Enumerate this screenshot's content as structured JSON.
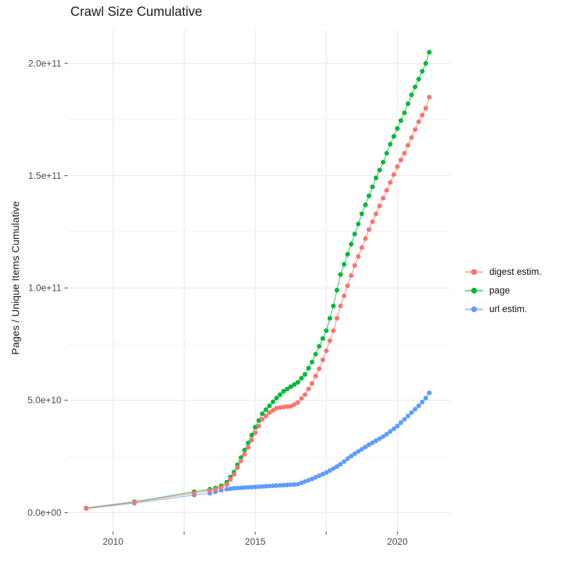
{
  "chart_data": {
    "type": "scatter",
    "title": "Crawl Size Cumulative",
    "xlabel": "",
    "ylabel": "Pages / Unique Items Cumulative",
    "value_unit": "items (x 1e9)",
    "grid": true,
    "legend_position": "right",
    "xlim": [
      2008.4,
      2021.85
    ],
    "ylim_billions": [
      -8.5,
      215
    ],
    "x_gridlines_years": [
      2010,
      2012.5,
      2015,
      2017.5,
      2020
    ],
    "x_tick_labels": [
      {
        "year": 2010,
        "label": "2010"
      },
      {
        "year": 2015,
        "label": "2015"
      },
      {
        "year": 2020,
        "label": "2020"
      }
    ],
    "y_major_ticks": [
      {
        "value_billions": 0,
        "label": "0.0e+00"
      },
      {
        "value_billions": 50,
        "label": "5.0e+10"
      },
      {
        "value_billions": 100,
        "label": "1.0e+11"
      },
      {
        "value_billions": 150,
        "label": "1.5e+11"
      },
      {
        "value_billions": 200,
        "label": "2.0e+11"
      }
    ],
    "y_minor_gridlines_billions": [
      25,
      75,
      125,
      175
    ],
    "series": [
      {
        "name": "digest estim.",
        "color": "#F8766D",
        "points_year_billions": [
          [
            2009.05,
            1.9
          ],
          [
            2010.75,
            4.6
          ],
          [
            2012.85,
            8.7
          ],
          [
            2013.4,
            9.8
          ],
          [
            2013.6,
            10.3
          ],
          [
            2013.8,
            11.2
          ],
          [
            2014,
            12.5
          ],
          [
            2014.125,
            14.8
          ],
          [
            2014.25,
            17
          ],
          [
            2014.375,
            20
          ],
          [
            2014.5,
            23
          ],
          [
            2014.625,
            26
          ],
          [
            2014.75,
            29
          ],
          [
            2014.875,
            32.3
          ],
          [
            2015,
            35.5
          ],
          [
            2015.125,
            38.5
          ],
          [
            2015.25,
            41.5
          ],
          [
            2015.375,
            43
          ],
          [
            2015.5,
            44.5
          ],
          [
            2015.625,
            45.5
          ],
          [
            2015.75,
            46.5
          ],
          [
            2015.875,
            46.8
          ],
          [
            2016,
            47
          ],
          [
            2016.125,
            47.2
          ],
          [
            2016.25,
            47.3
          ],
          [
            2016.375,
            48.1
          ],
          [
            2016.5,
            49
          ],
          [
            2016.625,
            50.8
          ],
          [
            2016.75,
            52.5
          ],
          [
            2016.875,
            55
          ],
          [
            2017,
            57.5
          ],
          [
            2017.125,
            60.8
          ],
          [
            2017.25,
            64
          ],
          [
            2017.375,
            68
          ],
          [
            2017.5,
            72
          ],
          [
            2017.625,
            76.5
          ],
          [
            2017.75,
            81
          ],
          [
            2017.875,
            86.5
          ],
          [
            2018,
            92
          ],
          [
            2018.125,
            96.5
          ],
          [
            2018.25,
            101
          ],
          [
            2018.375,
            105.5
          ],
          [
            2018.5,
            110
          ],
          [
            2018.625,
            114
          ],
          [
            2018.75,
            118
          ],
          [
            2018.875,
            122
          ],
          [
            2019,
            126
          ],
          [
            2019.125,
            129.5
          ],
          [
            2019.25,
            133
          ],
          [
            2019.375,
            136.5
          ],
          [
            2019.5,
            140
          ],
          [
            2019.625,
            143.5
          ],
          [
            2019.75,
            147
          ],
          [
            2019.875,
            150.5
          ],
          [
            2020,
            154
          ],
          [
            2020.125,
            157
          ],
          [
            2020.25,
            160
          ],
          [
            2020.375,
            163.5
          ],
          [
            2020.5,
            167
          ],
          [
            2020.625,
            170.5
          ],
          [
            2020.75,
            174
          ],
          [
            2020.875,
            177
          ],
          [
            2021,
            180
          ],
          [
            2021.125,
            185
          ]
        ]
      },
      {
        "name": "page",
        "color": "#00BA38",
        "points_year_billions": [
          [
            2009.05,
            2
          ],
          [
            2010.75,
            4.8
          ],
          [
            2012.85,
            9.3
          ],
          [
            2013.4,
            10.4
          ],
          [
            2013.6,
            10.9
          ],
          [
            2013.8,
            11.9
          ],
          [
            2014,
            13.5
          ],
          [
            2014.125,
            15.8
          ],
          [
            2014.25,
            18
          ],
          [
            2014.375,
            21.3
          ],
          [
            2014.5,
            24.5
          ],
          [
            2014.625,
            27.8
          ],
          [
            2014.75,
            31
          ],
          [
            2014.875,
            34.5
          ],
          [
            2015,
            38
          ],
          [
            2015.125,
            41
          ],
          [
            2015.25,
            44
          ],
          [
            2015.375,
            45.8
          ],
          [
            2015.5,
            47.5
          ],
          [
            2015.625,
            49.3
          ],
          [
            2015.75,
            51
          ],
          [
            2015.875,
            52.5
          ],
          [
            2016,
            54
          ],
          [
            2016.125,
            55
          ],
          [
            2016.25,
            56
          ],
          [
            2016.375,
            57
          ],
          [
            2016.5,
            58
          ],
          [
            2016.625,
            59.8
          ],
          [
            2016.75,
            61.5
          ],
          [
            2016.875,
            64.3
          ],
          [
            2017,
            67
          ],
          [
            2017.125,
            70.5
          ],
          [
            2017.25,
            74
          ],
          [
            2017.375,
            77.5
          ],
          [
            2017.5,
            81
          ],
          [
            2017.625,
            86.5
          ],
          [
            2017.75,
            92
          ],
          [
            2017.875,
            99
          ],
          [
            2018,
            106
          ],
          [
            2018.125,
            110.5
          ],
          [
            2018.25,
            115
          ],
          [
            2018.375,
            119.5
          ],
          [
            2018.5,
            124
          ],
          [
            2018.625,
            128.5
          ],
          [
            2018.75,
            133
          ],
          [
            2018.875,
            137
          ],
          [
            2019,
            141
          ],
          [
            2019.125,
            145
          ],
          [
            2019.25,
            149
          ],
          [
            2019.375,
            152.5
          ],
          [
            2019.5,
            156
          ],
          [
            2019.625,
            160
          ],
          [
            2019.75,
            164
          ],
          [
            2019.875,
            167.5
          ],
          [
            2020,
            171
          ],
          [
            2020.125,
            174.5
          ],
          [
            2020.25,
            178
          ],
          [
            2020.375,
            182
          ],
          [
            2020.5,
            186
          ],
          [
            2020.625,
            189.5
          ],
          [
            2020.75,
            193
          ],
          [
            2020.875,
            196.5
          ],
          [
            2021,
            200
          ],
          [
            2021.125,
            205
          ]
        ]
      },
      {
        "name": "url estim.",
        "color": "#619CFF",
        "points_year_billions": [
          [
            2009.05,
            1.8
          ],
          [
            2010.75,
            4.2
          ],
          [
            2012.85,
            7.8
          ],
          [
            2013.4,
            8.6
          ],
          [
            2013.6,
            9.2
          ],
          [
            2013.8,
            9.9
          ],
          [
            2014,
            10.4
          ],
          [
            2014.125,
            10.6
          ],
          [
            2014.25,
            10.8
          ],
          [
            2014.375,
            10.9
          ],
          [
            2014.5,
            11
          ],
          [
            2014.625,
            11.1
          ],
          [
            2014.75,
            11.2
          ],
          [
            2014.875,
            11.3
          ],
          [
            2015,
            11.4
          ],
          [
            2015.125,
            11.5
          ],
          [
            2015.25,
            11.6
          ],
          [
            2015.375,
            11.7
          ],
          [
            2015.5,
            11.8
          ],
          [
            2015.625,
            11.9
          ],
          [
            2015.75,
            12
          ],
          [
            2015.875,
            12.1
          ],
          [
            2016,
            12.2
          ],
          [
            2016.125,
            12.3
          ],
          [
            2016.25,
            12.4
          ],
          [
            2016.375,
            12.5
          ],
          [
            2016.5,
            12.6
          ],
          [
            2016.625,
            13.2
          ],
          [
            2016.75,
            13.8
          ],
          [
            2016.875,
            14.4
          ],
          [
            2017,
            15
          ],
          [
            2017.125,
            15.7
          ],
          [
            2017.25,
            16.4
          ],
          [
            2017.375,
            17.1
          ],
          [
            2017.5,
            17.8
          ],
          [
            2017.625,
            18.7
          ],
          [
            2017.75,
            19.6
          ],
          [
            2017.875,
            20.5
          ],
          [
            2018,
            21.5
          ],
          [
            2018.125,
            22.7
          ],
          [
            2018.25,
            24
          ],
          [
            2018.375,
            25.1
          ],
          [
            2018.5,
            26.2
          ],
          [
            2018.625,
            27.2
          ],
          [
            2018.75,
            28.2
          ],
          [
            2018.875,
            29.2
          ],
          [
            2019,
            30.2
          ],
          [
            2019.125,
            31.1
          ],
          [
            2019.25,
            32
          ],
          [
            2019.375,
            32.9
          ],
          [
            2019.5,
            33.8
          ],
          [
            2019.625,
            34.9
          ],
          [
            2019.75,
            36.1
          ],
          [
            2019.875,
            37.3
          ],
          [
            2020,
            38.5
          ],
          [
            2020.125,
            40
          ],
          [
            2020.25,
            41.5
          ],
          [
            2020.375,
            43
          ],
          [
            2020.5,
            44.5
          ],
          [
            2020.625,
            46
          ],
          [
            2020.75,
            47.5
          ],
          [
            2020.875,
            49.2
          ],
          [
            2021,
            51
          ],
          [
            2021.125,
            53.3
          ]
        ]
      }
    ],
    "style": {
      "major_grid_color": "#e4e4e4",
      "minor_grid_color": "#f0f0f0",
      "tick_color": "#333333",
      "tick_label_color": "#4d4d4d",
      "background": "#ffffff"
    }
  }
}
